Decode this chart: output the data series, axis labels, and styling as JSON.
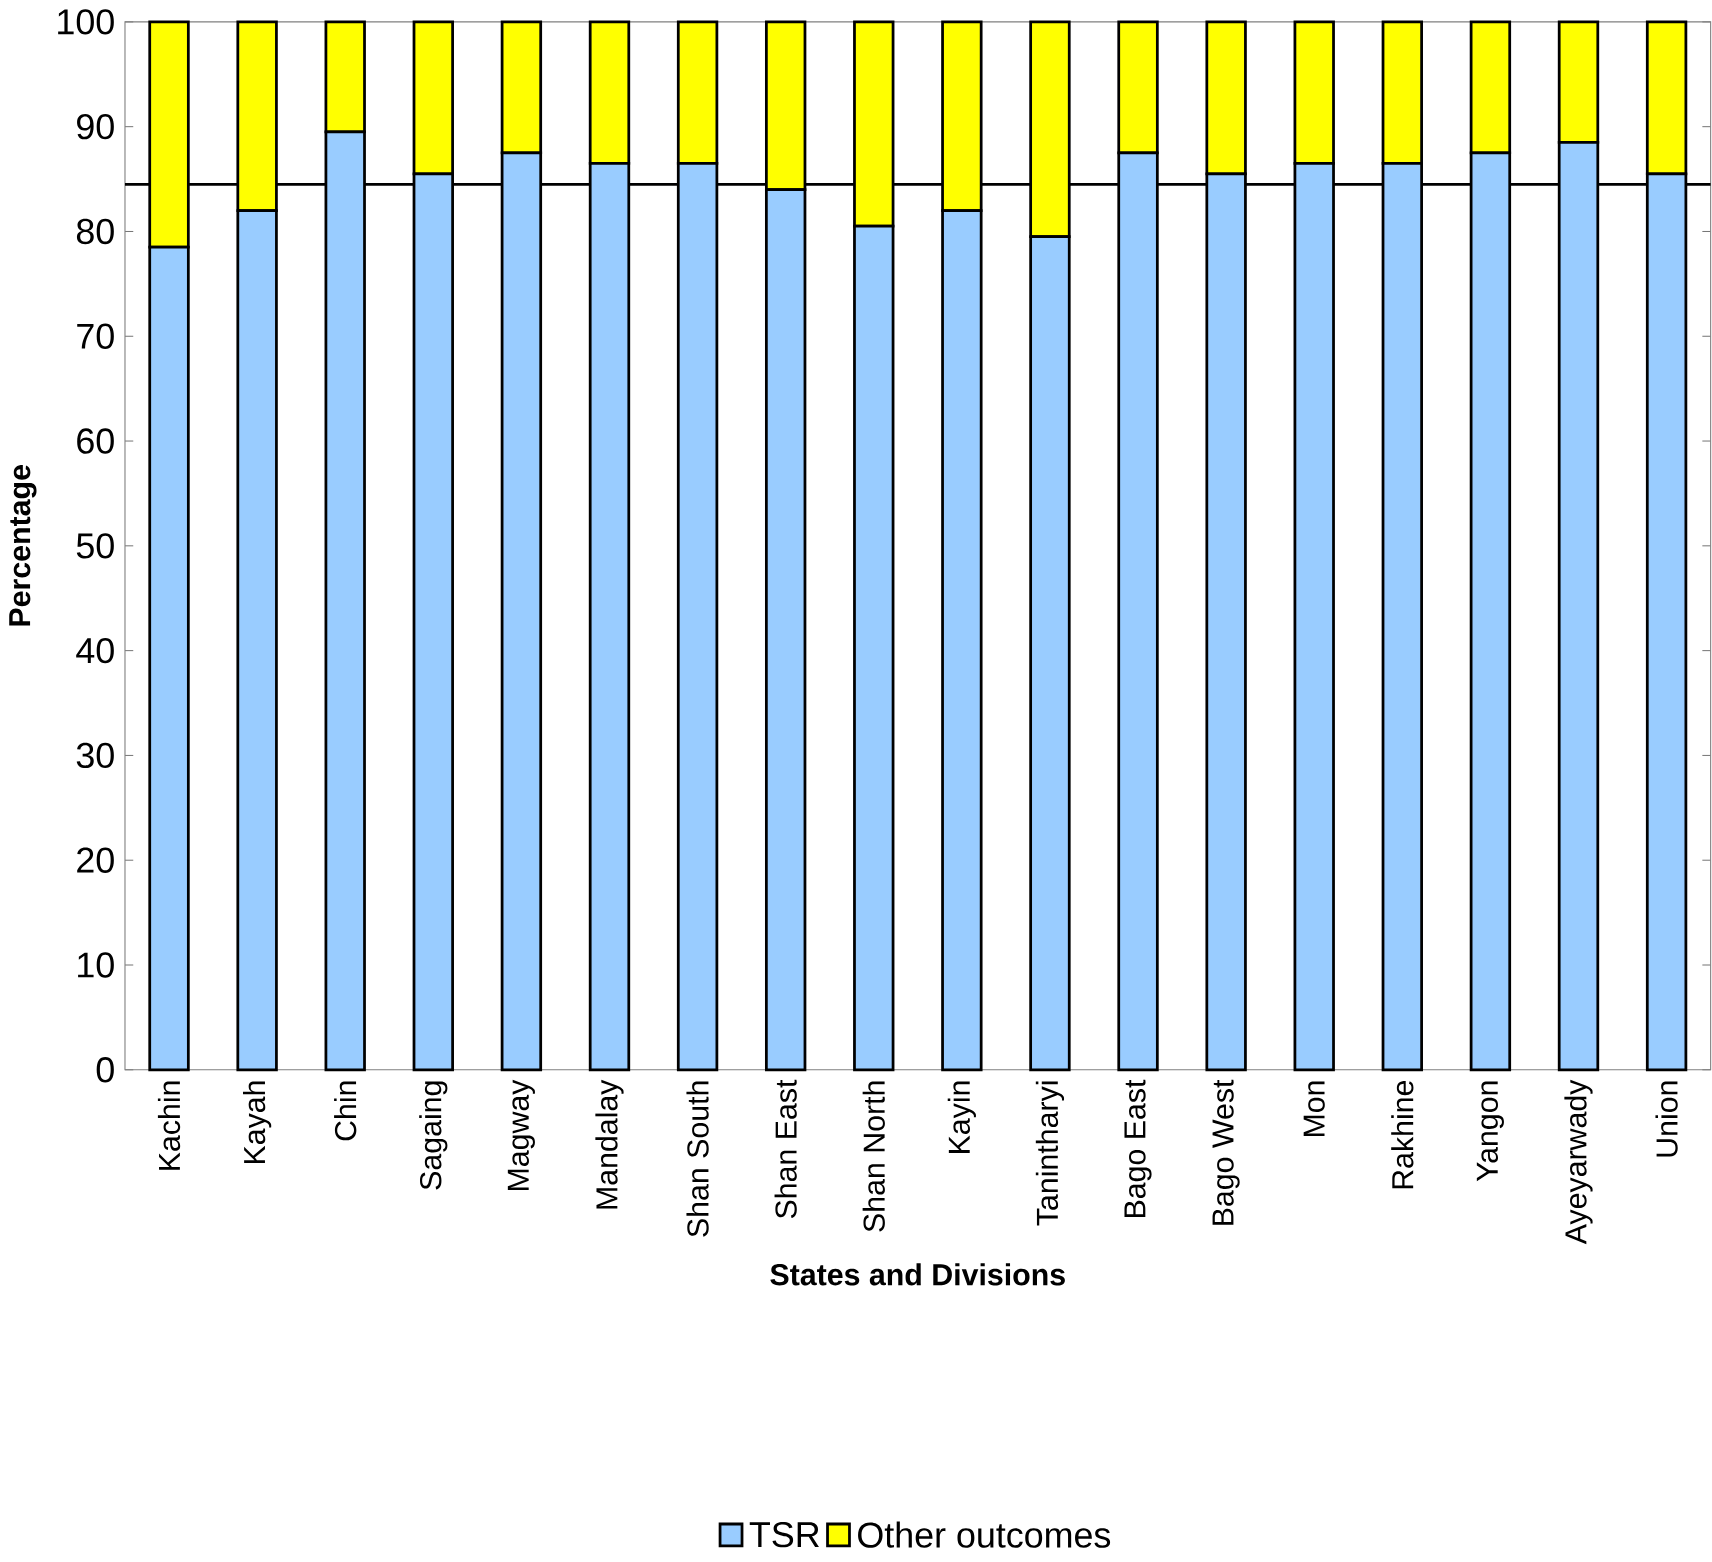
{
  "chart_data": {
    "type": "bar",
    "stacked": true,
    "xlabel": "States and Divisions",
    "ylabel": "Percentage",
    "categories": [
      "Kachin",
      "Kayah",
      "Chin",
      "Sagaing",
      "Magway",
      "Mandalay",
      "Shan South",
      "Shan East",
      "Shan North",
      "Kayin",
      "Tanintharyi",
      "Bago East",
      "Bago West",
      "Mon",
      "Rakhine",
      "Yangon",
      "Ayeyarwady",
      "Union"
    ],
    "series": [
      {
        "name": "TSR",
        "color": "#99ccff",
        "values": [
          78.5,
          82,
          89.5,
          85.5,
          87.5,
          86.5,
          86.5,
          84,
          80.5,
          82,
          79.5,
          87.5,
          85.5,
          86.5,
          86.5,
          87.5,
          88.5,
          85.5
        ]
      },
      {
        "name": "Other outcomes",
        "color": "#ffff00",
        "values": [
          21.5,
          18,
          10.5,
          14.5,
          12.5,
          13.5,
          13.5,
          16,
          19.5,
          18,
          20.5,
          12.5,
          14.5,
          13.5,
          13.5,
          12.5,
          11.5,
          14.5
        ]
      }
    ],
    "ylim": [
      0,
      100
    ],
    "yticks": [
      0,
      10,
      20,
      30,
      40,
      50,
      60,
      70,
      80,
      90,
      100
    ],
    "ref_lines": [
      {
        "axis": "y",
        "value": 84.5,
        "color": "#000000"
      }
    ],
    "legend": "bottom"
  }
}
